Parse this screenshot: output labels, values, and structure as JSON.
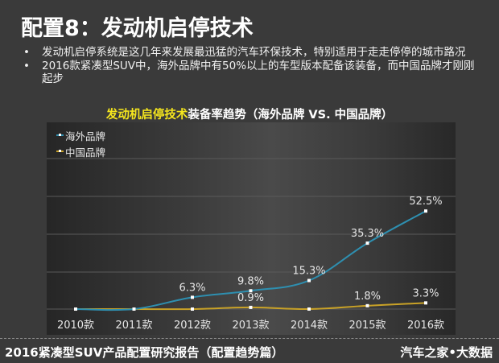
{
  "slide": {
    "title": "配置8：发动机启停技术",
    "bullets": [
      "发动机启停系统是这几年来发展最迅猛的汽车环保技术，特别适用于走走停停的城市路况",
      "2016款紧凑型SUV中，海外品牌中有50%以上的车型版本配备该装备，而中国品牌才刚刚起步"
    ],
    "bullet_glyph": "•"
  },
  "chart_header": {
    "highlight": "发动机启停技术",
    "rest": "装备率趋势（海外品牌 VS. 中国品牌）"
  },
  "footer": {
    "left": "2016紧凑型SUV产品配置研究报告（配置趋势篇）",
    "right": "汽车之家•大数据"
  },
  "colors": {
    "overseas": "#2e8fb0",
    "china": "#c9a227",
    "highlight": "#f5e61e",
    "background": "#3a3a3a"
  },
  "chart_data": {
    "type": "line",
    "title": "发动机启停技术装备率趋势（海外品牌 VS. 中国品牌）",
    "categories": [
      "2010款",
      "2011款",
      "2012款",
      "2013款",
      "2014款",
      "2015款",
      "2016款"
    ],
    "series": [
      {
        "name": "海外品牌",
        "values": [
          0,
          0,
          6.3,
          9.8,
          15.3,
          35.3,
          52.5
        ],
        "labels": [
          "",
          "",
          "6.3%",
          "9.8%",
          "15.3%",
          "35.3%",
          "52.5%"
        ],
        "color": "#2e8fb0"
      },
      {
        "name": "中国品牌",
        "values": [
          0,
          0,
          0,
          0.9,
          0,
          1.8,
          3.3
        ],
        "labels": [
          "",
          "",
          "",
          "0.9%",
          "",
          "1.8%",
          "3.3%"
        ],
        "color": "#c9a227"
      }
    ],
    "xlabel": "",
    "ylabel": "",
    "ylim": [
      0,
      60
    ],
    "grid": true,
    "legend_position": "top-left",
    "smooth": true
  }
}
